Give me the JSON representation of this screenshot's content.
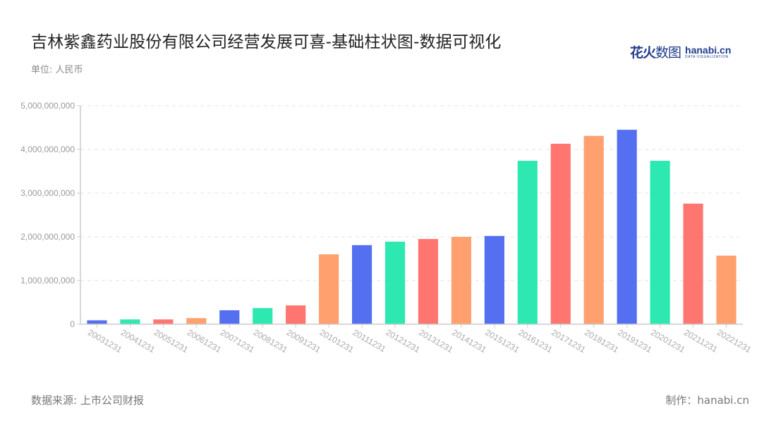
{
  "header": {
    "title": "吉林紫鑫药业股份有限公司经营发展可喜-基础柱状图-数据可视化",
    "unit": "单位: 人民币"
  },
  "logo": {
    "cn_bold": "花火",
    "cn_light": "数图",
    "en": "hanabi.cn",
    "en_sub": "DATA VISUALIZATION"
  },
  "footer": {
    "source": "数据来源: 上市公司财报",
    "credit": "制作：hanabi.cn"
  },
  "colors": {
    "palette": [
      "#5470f0",
      "#2ee8b2",
      "#ff7570",
      "#ffa06e"
    ],
    "axis": "#cccccc",
    "grid": "#e3e3e3"
  },
  "chart_data": {
    "type": "bar",
    "title": "吉林紫鑫药业股份有限公司经营发展可喜-基础柱状图-数据可视化",
    "xlabel": "",
    "ylabel": "单位: 人民币",
    "ylim": [
      0,
      5000000000
    ],
    "yticks": [
      0,
      1000000000,
      2000000000,
      3000000000,
      4000000000,
      5000000000
    ],
    "ytick_labels": [
      "0",
      "1,000,000,000",
      "2,000,000,000",
      "3,000,000,000",
      "4,000,000,000",
      "5,000,000,000"
    ],
    "grid": "horizontal dashed",
    "legend": "none",
    "categories": [
      "20031231",
      "20041231",
      "20051231",
      "20061231",
      "20071231",
      "20081231",
      "20091231",
      "20101231",
      "20111231",
      "20121231",
      "20131231",
      "20141231",
      "20151231",
      "20161231",
      "20171231",
      "20181231",
      "20191231",
      "20201231",
      "20211231",
      "20221231"
    ],
    "values": [
      90000000,
      110000000,
      110000000,
      140000000,
      320000000,
      370000000,
      430000000,
      1600000000,
      1810000000,
      1890000000,
      1950000000,
      2000000000,
      2020000000,
      3740000000,
      4130000000,
      4310000000,
      4450000000,
      3740000000,
      2760000000,
      1570000000
    ]
  }
}
